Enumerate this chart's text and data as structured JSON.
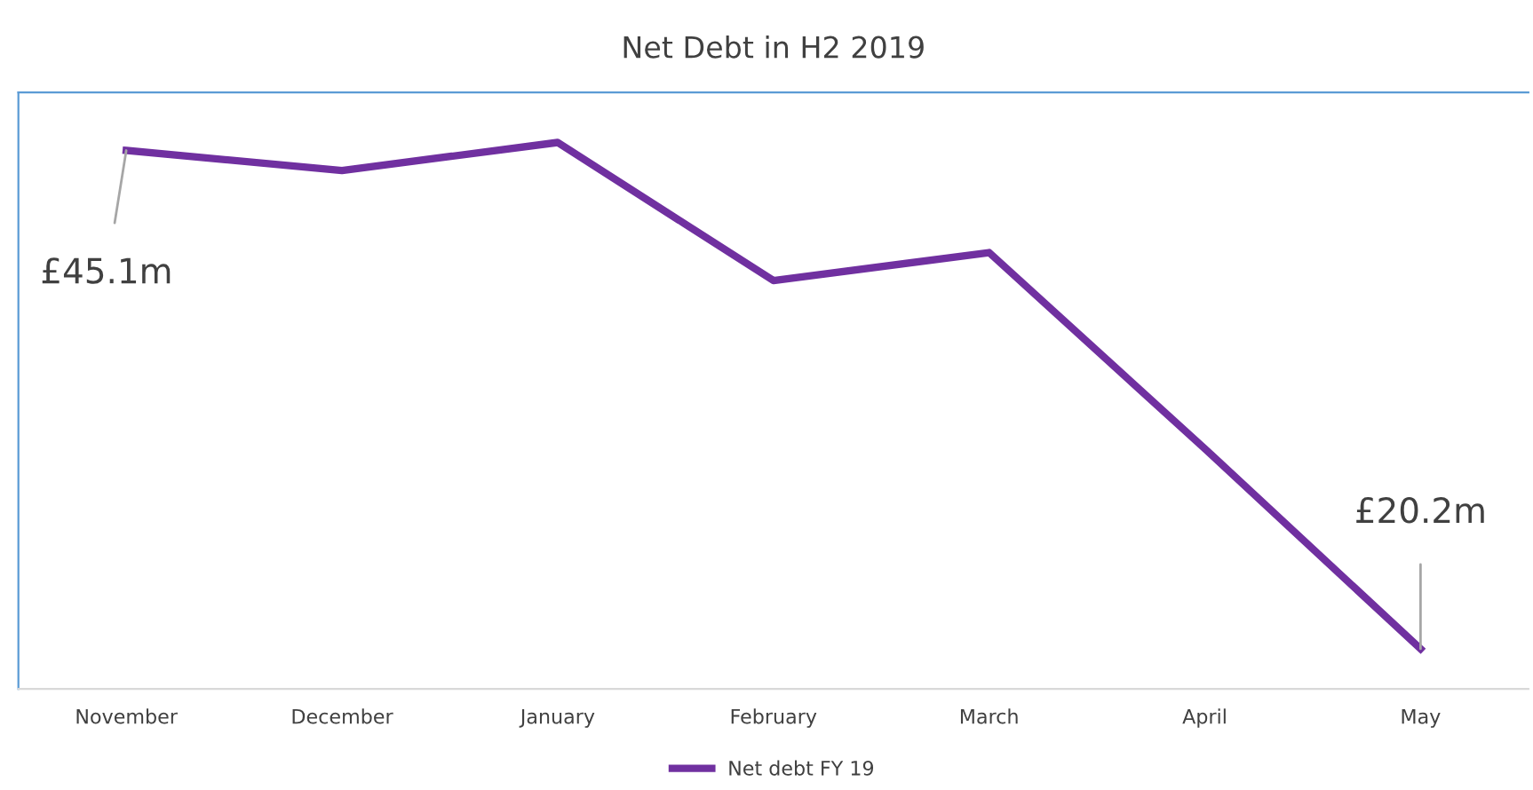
{
  "chart_data": {
    "type": "line",
    "title": "Net Debt in H2 2019",
    "categories": [
      "November",
      "December",
      "January",
      "February",
      "March",
      "April",
      "May"
    ],
    "series": [
      {
        "name": "Net debt FY 19",
        "color": "#7030a0",
        "values": [
          45.1,
          44.1,
          45.5,
          38.6,
          40.0,
          30.2,
          20.2
        ],
        "value_labels": [
          "£45.1m",
          null,
          null,
          null,
          null,
          null,
          "£20.2m"
        ]
      }
    ],
    "ylim": [
      18.2,
      48.0
    ],
    "tick_labels": "x",
    "legend": "bottom",
    "grid": false,
    "marker": "none",
    "line_style": "solid"
  }
}
